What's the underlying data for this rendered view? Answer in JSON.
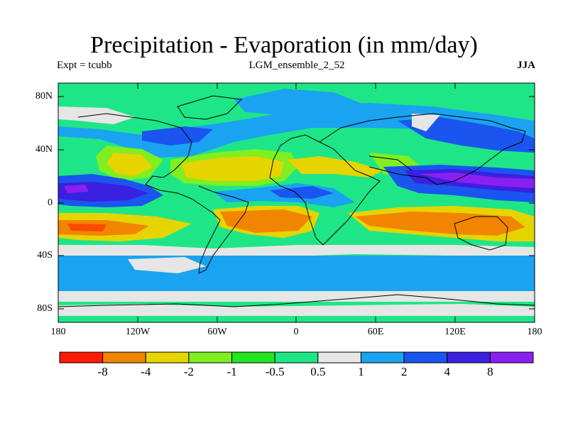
{
  "title": "Precipitation - Evaporation (in mm/day)",
  "left_label": "Expt = tcubb",
  "center_label": "LGM_ensemble_2_52",
  "right_label": "JJA",
  "y_ticks": [
    "80N",
    "40N",
    "0",
    "40S",
    "80S"
  ],
  "x_ticks": [
    "180",
    "120W",
    "60W",
    "0",
    "60E",
    "120E",
    "180"
  ],
  "colorbar": {
    "colors": [
      "#ff1a00",
      "#f28500",
      "#e6d400",
      "#80ee20",
      "#22e622",
      "#1ee687",
      "#e6e6e6",
      "#1aa3f0",
      "#1a55f0",
      "#3a20e0",
      "#8a20f0"
    ],
    "labels": [
      "-8",
      "-4",
      "-2",
      "-1",
      "-0.5",
      "0.5",
      "1",
      "2",
      "4",
      "8"
    ]
  }
}
